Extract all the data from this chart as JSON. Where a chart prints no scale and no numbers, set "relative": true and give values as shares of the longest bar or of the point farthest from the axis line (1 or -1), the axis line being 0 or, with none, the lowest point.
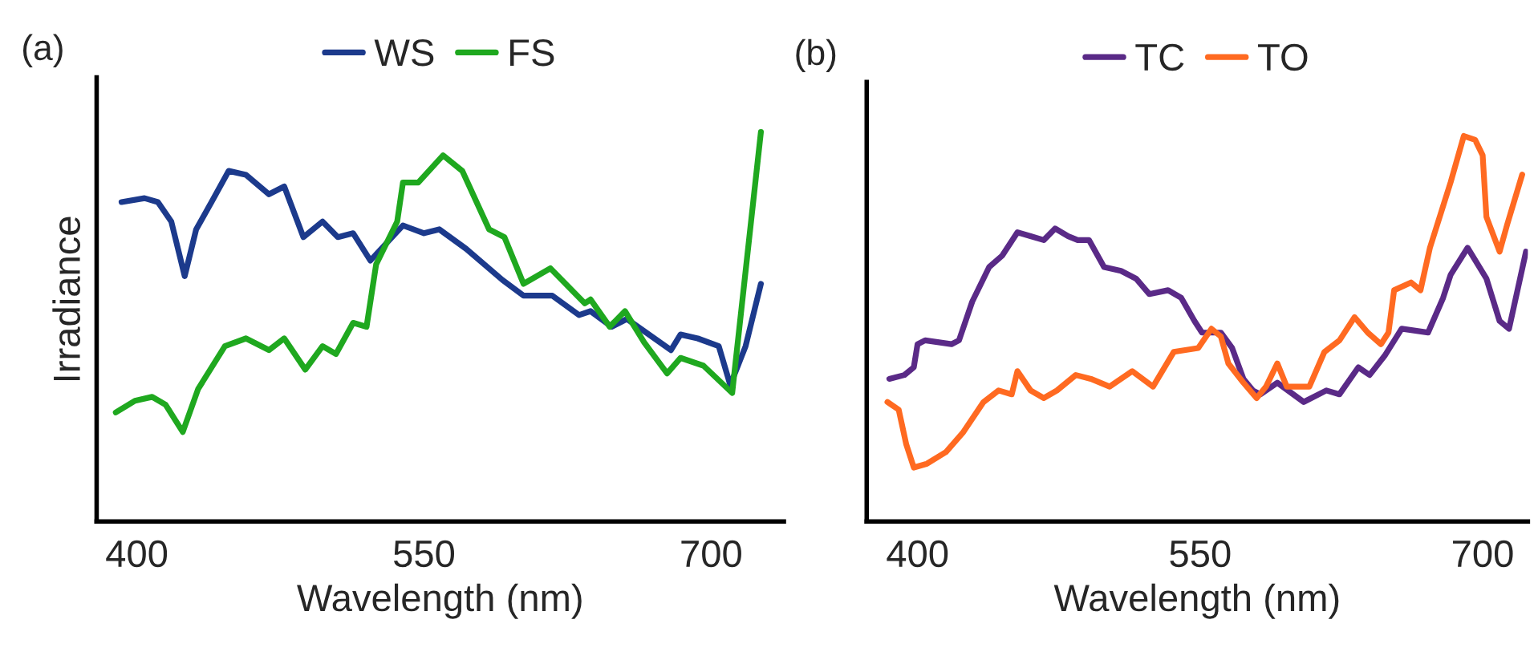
{
  "chart_data": [
    {
      "type": "line",
      "title": "(a)",
      "xlabel": "Wavelength (nm)",
      "ylabel": "Irradiance",
      "relative": true,
      "xlim": [
        379,
        738
      ],
      "xticks": [
        400,
        550,
        700
      ],
      "legend": "top",
      "grid": false,
      "tick_labels": "x",
      "series": [
        {
          "name": "WS",
          "color": "#1c3a8c",
          "x": [
            392,
            404,
            411,
            418,
            425,
            431,
            439,
            448,
            457,
            469,
            477,
            487,
            497,
            505,
            513,
            522,
            539,
            550,
            558,
            572,
            591,
            602,
            617,
            631,
            637,
            648,
            656,
            679,
            684,
            693,
            704,
            710,
            718,
            726
          ],
          "values": [
            0.82,
            0.83,
            0.82,
            0.77,
            0.63,
            0.75,
            0.82,
            0.9,
            0.89,
            0.84,
            0.86,
            0.73,
            0.77,
            0.73,
            0.74,
            0.67,
            0.76,
            0.74,
            0.75,
            0.7,
            0.62,
            0.58,
            0.58,
            0.53,
            0.54,
            0.5,
            0.52,
            0.44,
            0.48,
            0.47,
            0.45,
            0.35,
            0.45,
            0.61
          ]
        },
        {
          "name": "FS",
          "color": "#1fa81f",
          "x": [
            389,
            399,
            408,
            415,
            424,
            432,
            446,
            457,
            469,
            477,
            488,
            497,
            504,
            513,
            520,
            525,
            536,
            539,
            547,
            560,
            570,
            584,
            592,
            602,
            616,
            634,
            637,
            647,
            655,
            665,
            677,
            684,
            696,
            711,
            726
          ],
          "values": [
            0.28,
            0.31,
            0.32,
            0.3,
            0.23,
            0.34,
            0.45,
            0.47,
            0.44,
            0.47,
            0.39,
            0.45,
            0.43,
            0.51,
            0.5,
            0.66,
            0.77,
            0.87,
            0.87,
            0.94,
            0.9,
            0.75,
            0.73,
            0.61,
            0.65,
            0.56,
            0.57,
            0.5,
            0.54,
            0.46,
            0.38,
            0.42,
            0.4,
            0.33,
            1
          ]
        }
      ]
    },
    {
      "type": "line",
      "title": "(b)",
      "xlabel": "Wavelength (nm)",
      "relative": true,
      "xlim": [
        373,
        724
      ],
      "xticks": [
        400,
        550,
        700
      ],
      "legend": "top",
      "grid": false,
      "tick_labels": "x",
      "series": [
        {
          "name": "TC",
          "color": "#5a2a87",
          "x": [
            385,
            393,
            398,
            400,
            404,
            418,
            422,
            429,
            438,
            445,
            453,
            460,
            467,
            473,
            480,
            485,
            491,
            499,
            508,
            516,
            523,
            533,
            540,
            547,
            551,
            561,
            567,
            573,
            578,
            582,
            591,
            605,
            617,
            624,
            634,
            640,
            648,
            657,
            671,
            679,
            683,
            692,
            702,
            709,
            714,
            723
          ],
          "values": [
            0.37,
            0.38,
            0.4,
            0.46,
            0.47,
            0.46,
            0.47,
            0.57,
            0.66,
            0.69,
            0.75,
            0.74,
            0.73,
            0.76,
            0.74,
            0.73,
            0.73,
            0.66,
            0.65,
            0.63,
            0.59,
            0.6,
            0.58,
            0.52,
            0.49,
            0.49,
            0.45,
            0.37,
            0.34,
            0.33,
            0.36,
            0.31,
            0.34,
            0.33,
            0.4,
            0.38,
            0.43,
            0.5,
            0.49,
            0.58,
            0.64,
            0.71,
            0.63,
            0.52,
            0.5,
            0.7
          ]
        },
        {
          "name": "TO",
          "color": "#ff6a21",
          "x": [
            384,
            390,
            394,
            398,
            405,
            415,
            424,
            435,
            443,
            450,
            453,
            460,
            467,
            474,
            484,
            492,
            502,
            514,
            525,
            536,
            549,
            556,
            561,
            565,
            573,
            580,
            585,
            591,
            596,
            608,
            616,
            624,
            632,
            639,
            646,
            650,
            653,
            662,
            667,
            672,
            683,
            690,
            696,
            700,
            702,
            709,
            713,
            721
          ],
          "values": [
            0.31,
            0.29,
            0.2,
            0.14,
            0.15,
            0.18,
            0.23,
            0.31,
            0.34,
            0.33,
            0.39,
            0.34,
            0.32,
            0.34,
            0.38,
            0.37,
            0.35,
            0.39,
            0.35,
            0.44,
            0.45,
            0.5,
            0.48,
            0.41,
            0.36,
            0.32,
            0.35,
            0.41,
            0.35,
            0.35,
            0.44,
            0.47,
            0.53,
            0.49,
            0.46,
            0.49,
            0.6,
            0.62,
            0.6,
            0.71,
            0.88,
            1,
            0.99,
            0.95,
            0.79,
            0.7,
            0.77,
            0.9
          ]
        }
      ]
    }
  ]
}
